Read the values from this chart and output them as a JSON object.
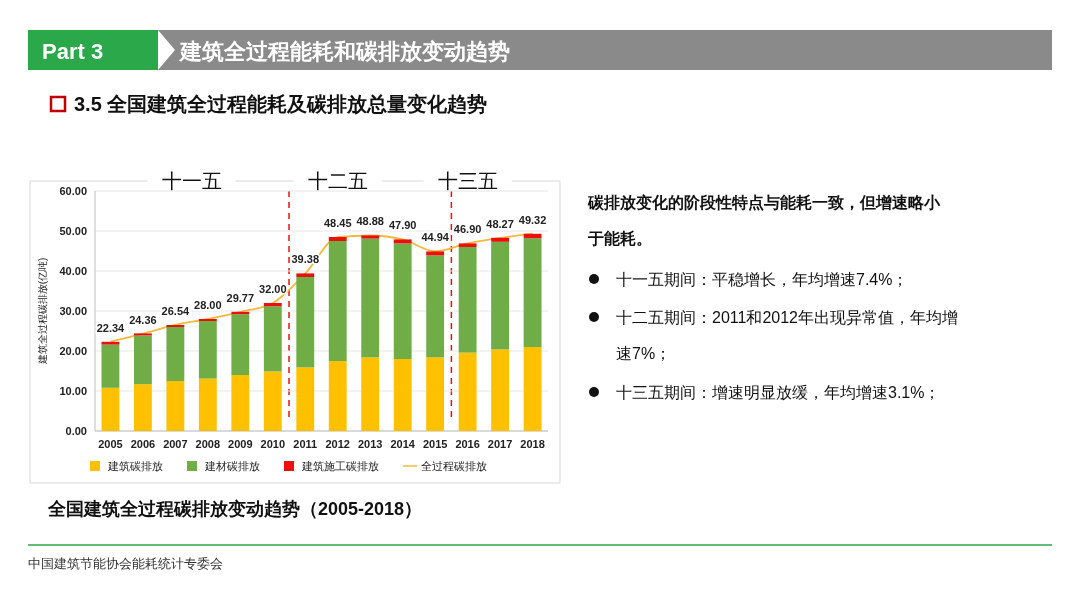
{
  "chart_data": {
    "type": "bar",
    "stacked": true,
    "title": "3.5 全国建筑全过程能耗及碳排放总量变化趋势",
    "ylabel": "建筑全过程碳排放(亿吨)",
    "categories": [
      "2005",
      "2006",
      "2007",
      "2008",
      "2009",
      "2010",
      "2011",
      "2012",
      "2013",
      "2014",
      "2015",
      "2016",
      "2017",
      "2018"
    ],
    "series": [
      {
        "name": "建筑碳排放",
        "color": "#ffc000",
        "values": [
          10.8,
          11.7,
          12.5,
          13.1,
          14.0,
          14.9,
          15.9,
          17.5,
          18.4,
          18.0,
          18.4,
          19.6,
          20.4,
          21.0
        ]
      },
      {
        "name": "建材碳排放",
        "color": "#70ad47",
        "values": [
          10.8,
          12.2,
          13.5,
          14.4,
          15.2,
          16.3,
          22.6,
          30.0,
          29.7,
          28.9,
          25.5,
          26.4,
          26.9,
          27.2
        ]
      },
      {
        "name": "建筑施工碳排放",
        "color": "#e8110f",
        "values": [
          0.7,
          0.5,
          0.5,
          0.5,
          0.6,
          0.8,
          0.9,
          1.0,
          0.8,
          1.0,
          1.0,
          0.9,
          1.0,
          1.1
        ]
      },
      {
        "name": "全过程碳排放",
        "type": "line",
        "color": "#f5b83d",
        "values": [
          22.34,
          24.36,
          26.54,
          28.0,
          29.77,
          32.0,
          39.38,
          48.45,
          48.88,
          47.9,
          44.94,
          46.9,
          48.27,
          49.32
        ],
        "value_labels": [
          "22.34",
          "24.36",
          "26.54",
          "28.00",
          "29.77",
          "32.00",
          "39.38",
          "48.45",
          "48.88",
          "47.90",
          "44.94",
          "46.90",
          "48.27",
          "49.32"
        ]
      }
    ],
    "ylim": [
      0,
      60
    ],
    "yticks": [
      {
        "value": 0,
        "label": "0.00"
      },
      {
        "value": 10,
        "label": "10.00"
      },
      {
        "value": 20,
        "label": "20.00"
      },
      {
        "value": 30,
        "label": "30.00"
      },
      {
        "value": 40,
        "label": "40.00"
      },
      {
        "value": 50,
        "label": "50.00"
      },
      {
        "value": 60,
        "label": "60.00"
      }
    ],
    "grid": "y",
    "legend": "bottom",
    "annotations": [
      "十一五",
      "十二五",
      "十三五",
      "Part 3",
      "建筑全过程能耗和碳排放变动趋势",
      "全国建筑全过程碳排放变动趋势（2005-2018）",
      "碳排放变化的阶段性特点与能耗一致，但增速略小于能耗。",
      "十一五期间：平稳增长，年均增速7.4%；",
      "十二五期间：2011和2012年出现异常值，年均增速7%；",
      "十三五期间：增速明显放缓，年均增速3.1%；",
      "中国建筑节能协会能耗统计专委会"
    ]
  }
}
